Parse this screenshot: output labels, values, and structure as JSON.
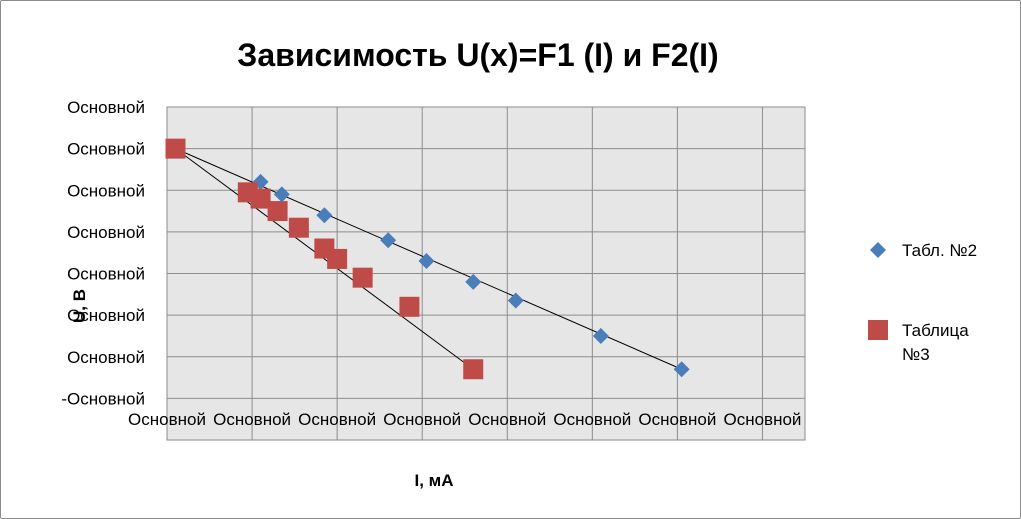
{
  "chart_data": {
    "type": "scatter",
    "title": "Зависимость U(x)=F1 (I) и F2(I)",
    "xlabel": "I, мА",
    "ylabel": "U, В",
    "x_tick_labels": [
      "Основной",
      "Основной",
      "Основной",
      "Основной",
      "Основной",
      "Основной",
      "Основной",
      "Основной"
    ],
    "y_tick_labels": [
      "Основной",
      "Основной",
      "Основной",
      "Основной",
      "Основной",
      "Основной",
      "Основной",
      "-Основной"
    ],
    "xlim": [
      0,
      7.5
    ],
    "ylim": [
      -1,
      7
    ],
    "grid": true,
    "legend_position": "right",
    "series": [
      {
        "name": "Табл. №2",
        "marker": "diamond",
        "color": "#4a7ebb",
        "x": [
          1.1,
          1.35,
          1.85,
          2.6,
          3.05,
          3.6,
          4.1,
          5.1,
          6.05
        ],
        "y": [
          5.2,
          4.9,
          4.4,
          3.8,
          3.3,
          2.8,
          2.35,
          1.5,
          0.7
        ]
      },
      {
        "name": "Таблица №3",
        "marker": "square",
        "color": "#be4b48",
        "x": [
          0.1,
          0.95,
          1.1,
          1.3,
          1.55,
          1.85,
          2.0,
          2.3,
          2.85,
          3.6
        ],
        "y": [
          6.0,
          4.95,
          4.8,
          4.5,
          4.1,
          3.6,
          3.35,
          2.9,
          2.2,
          0.7
        ]
      }
    ],
    "trendlines": [
      {
        "series": "Табл. №2",
        "x": [
          0.1,
          6.05
        ],
        "y": [
          6.0,
          0.7
        ]
      },
      {
        "series": "Таблица №3",
        "x": [
          0.1,
          3.6
        ],
        "y": [
          6.0,
          0.7
        ]
      }
    ]
  },
  "colors": {
    "plot_background": "#e6e6e6",
    "gridline": "#8c8c8c",
    "trendline": "#000000"
  }
}
